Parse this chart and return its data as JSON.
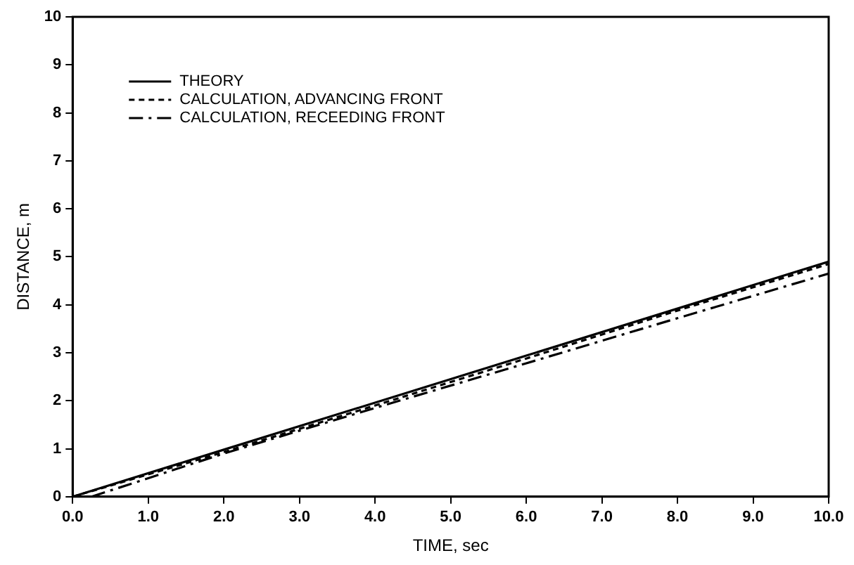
{
  "chart_data": {
    "type": "line",
    "xlabel": "TIME, sec",
    "ylabel": "DISTANCE, m",
    "xlim": [
      0,
      10
    ],
    "ylim": [
      0,
      10
    ],
    "xticks": [
      {
        "value": 0,
        "label": "0.0"
      },
      {
        "value": 1,
        "label": "1.0"
      },
      {
        "value": 2,
        "label": "2.0"
      },
      {
        "value": 3,
        "label": "3.0"
      },
      {
        "value": 4,
        "label": "4.0"
      },
      {
        "value": 5,
        "label": "5.0"
      },
      {
        "value": 6,
        "label": "6.0"
      },
      {
        "value": 7,
        "label": "7.0"
      },
      {
        "value": 8,
        "label": "8.0"
      },
      {
        "value": 9,
        "label": "9.0"
      },
      {
        "value": 10,
        "label": "10.0"
      }
    ],
    "yticks": [
      0,
      1,
      2,
      3,
      4,
      5,
      6,
      7,
      8,
      9,
      10
    ],
    "grid": false,
    "legend": "top left",
    "marker": "none",
    "series": [
      {
        "name": "THEORY",
        "color": "#000000",
        "line_style": "solid",
        "x": [
          0,
          2,
          4,
          6,
          8,
          10
        ],
        "values": [
          0,
          0.98,
          1.96,
          2.94,
          3.92,
          4.9
        ]
      },
      {
        "name": "CALCULATION, ADVANCING FRONT",
        "color": "#000000",
        "line_style": "dotted",
        "x": [
          0,
          2,
          4,
          6,
          8,
          10
        ],
        "values": [
          0,
          0.93,
          1.9,
          2.88,
          3.88,
          4.85
        ]
      },
      {
        "name": "CALCULATION, RECEEDING FRONT",
        "color": "#000000",
        "line_style": "dashed",
        "x": [
          0.25,
          2,
          4,
          6,
          8,
          10
        ],
        "values": [
          0,
          0.9,
          1.85,
          2.78,
          3.72,
          4.65
        ]
      }
    ]
  }
}
